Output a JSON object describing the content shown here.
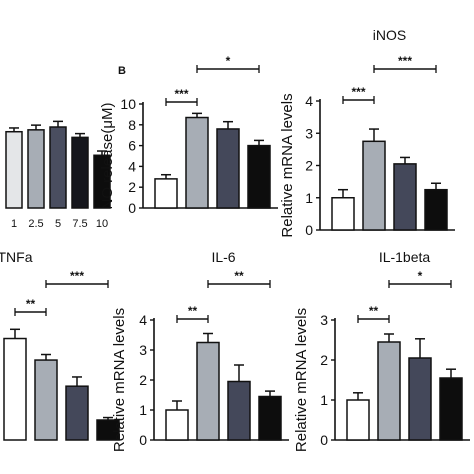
{
  "panel_labels": {
    "b": "B"
  },
  "colors": {
    "white": "#ffffff",
    "light_gray": "#a7adb5",
    "dark_slate": "#44485a",
    "black": "#0d0d0d",
    "axis": "#111111",
    "sig_line": "#111111"
  },
  "chart_data": [
    {
      "id": "top-left",
      "type": "bar",
      "title": "",
      "ylabel": "",
      "categories": [
        "1",
        "2.5",
        "5",
        "7.5",
        "10"
      ],
      "values": [
        8.1,
        8.3,
        8.6,
        7.5,
        5.6
      ],
      "errors": [
        0.4,
        0.5,
        0.6,
        0.4,
        0.45
      ],
      "fills": [
        "#e4e6e8",
        "#a7adb5",
        "#4a4e60",
        "#15161c",
        "#0d0d0d"
      ],
      "ylim": [
        0,
        12
      ],
      "yticks": [],
      "significance": []
    },
    {
      "id": "no-release",
      "type": "bar",
      "title": "",
      "ylabel": "NO release(μM)",
      "categories": [
        "",
        "",
        "",
        ""
      ],
      "values": [
        2.8,
        8.7,
        7.6,
        6.0
      ],
      "errors": [
        0.4,
        0.4,
        0.7,
        0.5
      ],
      "fills": [
        "#ffffff",
        "#a7adb5",
        "#44485a",
        "#0d0d0d"
      ],
      "ylim": [
        0,
        10
      ],
      "yticks": [
        "0",
        "2",
        "4",
        "6",
        "8",
        "10"
      ],
      "significance": [
        {
          "from": 0,
          "to": 1,
          "label": "***"
        },
        {
          "from": 1,
          "to": 3,
          "label": "*"
        }
      ]
    },
    {
      "id": "inos",
      "type": "bar",
      "title": "iNOS",
      "ylabel": "Relative mRNA levels",
      "categories": [
        "",
        "",
        "",
        ""
      ],
      "values": [
        1.0,
        2.75,
        2.05,
        1.25
      ],
      "errors": [
        0.25,
        0.38,
        0.2,
        0.2
      ],
      "fills": [
        "#ffffff",
        "#a7adb5",
        "#44485a",
        "#0d0d0d"
      ],
      "ylim": [
        0,
        4
      ],
      "yticks": [
        "0",
        "1",
        "2",
        "3",
        "4"
      ],
      "significance": [
        {
          "from": 0,
          "to": 1,
          "label": "***"
        },
        {
          "from": 1,
          "to": 3,
          "label": "***"
        }
      ]
    },
    {
      "id": "tnfa",
      "type": "bar",
      "title": "TNFa",
      "ylabel": "",
      "categories": [
        "",
        "",
        "",
        ""
      ],
      "values": [
        3.3,
        2.6,
        1.75,
        0.65
      ],
      "errors": [
        0.3,
        0.18,
        0.3,
        0.08
      ],
      "fills": [
        "#ffffff",
        "#a7adb5",
        "#44485a",
        "#0d0d0d"
      ],
      "ylim": [
        0,
        4
      ],
      "yticks": [],
      "significance": [
        {
          "from": 0,
          "to": 1,
          "label": "**"
        },
        {
          "from": 1,
          "to": 3,
          "label": "***"
        }
      ]
    },
    {
      "id": "il6",
      "type": "bar",
      "title": "IL-6",
      "ylabel": "Relative mRNA levels",
      "categories": [
        "",
        "",
        "",
        ""
      ],
      "values": [
        1.0,
        3.25,
        1.95,
        1.45
      ],
      "errors": [
        0.3,
        0.3,
        0.55,
        0.18
      ],
      "fills": [
        "#ffffff",
        "#a7adb5",
        "#44485a",
        "#0d0d0d"
      ],
      "ylim": [
        0,
        4
      ],
      "yticks": [
        "0",
        "1",
        "2",
        "3",
        "4"
      ],
      "significance": [
        {
          "from": 0,
          "to": 1,
          "label": "**"
        },
        {
          "from": 1,
          "to": 3,
          "label": "**"
        }
      ]
    },
    {
      "id": "il1beta",
      "type": "bar",
      "title": "IL-1beta",
      "ylabel": "Relative mRNA levels",
      "categories": [
        "",
        "",
        "",
        ""
      ],
      "values": [
        1.0,
        2.45,
        2.05,
        1.55
      ],
      "errors": [
        0.18,
        0.2,
        0.48,
        0.22
      ],
      "fills": [
        "#ffffff",
        "#a7adb5",
        "#44485a",
        "#0d0d0d"
      ],
      "ylim": [
        0,
        3
      ],
      "yticks": [
        "0",
        "1",
        "2",
        "3"
      ],
      "significance": [
        {
          "from": 0,
          "to": 1,
          "label": "**"
        },
        {
          "from": 1,
          "to": 3,
          "label": "*"
        }
      ]
    }
  ]
}
